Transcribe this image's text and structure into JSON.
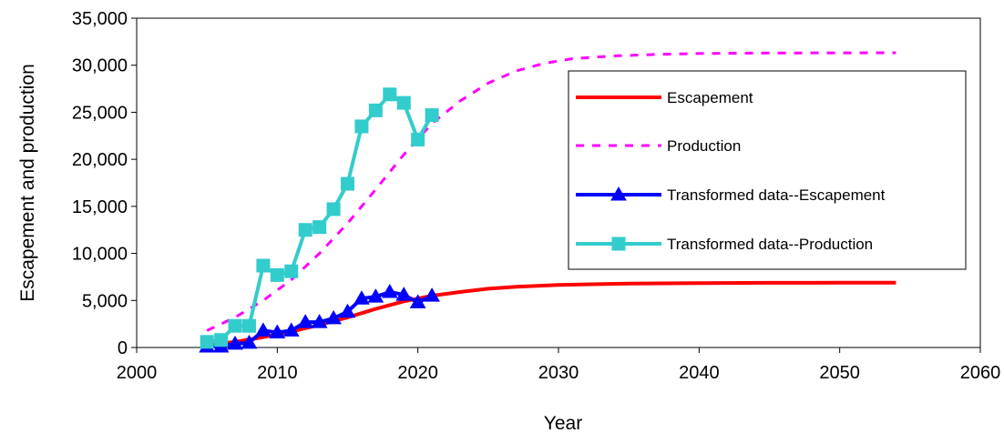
{
  "chart_data": {
    "type": "line",
    "title": "",
    "xlabel": "Year",
    "ylabel": "Escapement and production",
    "xlim": [
      2000,
      2060
    ],
    "ylim": [
      0,
      35000
    ],
    "x_ticks": [
      2000,
      2010,
      2020,
      2030,
      2040,
      2050,
      2060
    ],
    "y_ticks": [
      0,
      5000,
      10000,
      15000,
      20000,
      25000,
      30000,
      35000
    ],
    "x_tick_labels": [
      "2000",
      "2010",
      "2020",
      "2030",
      "2040",
      "2050",
      "2060"
    ],
    "y_tick_labels": [
      "0",
      "5,000",
      "10,000",
      "15,000",
      "20,000",
      "25,000",
      "30,000",
      "35,000"
    ],
    "grid": false,
    "legend_position": "right",
    "series": [
      {
        "name": "Escapement",
        "style": "solid",
        "color": "#ff0000",
        "marker": "none",
        "x": [
          2005,
          2007,
          2009,
          2011,
          2013,
          2015,
          2017,
          2019,
          2021,
          2023,
          2025,
          2027,
          2030,
          2035,
          2040,
          2045,
          2050,
          2054
        ],
        "y": [
          200,
          600,
          1100,
          1700,
          2400,
          3200,
          4100,
          4900,
          5500,
          5900,
          6250,
          6450,
          6650,
          6800,
          6850,
          6870,
          6880,
          6880
        ]
      },
      {
        "name": "Production",
        "style": "dashed",
        "color": "#ff00ff",
        "marker": "none",
        "x": [
          2005,
          2007,
          2009,
          2011,
          2013,
          2015,
          2017,
          2019,
          2021,
          2023,
          2025,
          2027,
          2029,
          2031,
          2034,
          2037,
          2040,
          2045,
          2050,
          2054
        ],
        "y": [
          1800,
          3200,
          5000,
          7200,
          10000,
          13200,
          16800,
          20500,
          23800,
          26200,
          28100,
          29400,
          30200,
          30700,
          31000,
          31150,
          31250,
          31300,
          31320,
          31330
        ]
      },
      {
        "name": "Transformed data--Escapement",
        "style": "solid",
        "color": "#0000ff",
        "marker": "triangle",
        "x": [
          2005,
          2006,
          2007,
          2008,
          2009,
          2010,
          2011,
          2012,
          2013,
          2014,
          2015,
          2016,
          2017,
          2018,
          2019,
          2020,
          2021
        ],
        "y": [
          100,
          100,
          400,
          500,
          1800,
          1600,
          1800,
          2700,
          2700,
          3100,
          3800,
          5200,
          5400,
          5900,
          5600,
          4800,
          5500
        ]
      },
      {
        "name": "Transformed data--Production",
        "style": "solid",
        "color": "#33cccc",
        "marker": "square",
        "x": [
          2005,
          2006,
          2007,
          2008,
          2009,
          2010,
          2011,
          2012,
          2013,
          2014,
          2015,
          2016,
          2017,
          2018,
          2019,
          2020,
          2021
        ],
        "y": [
          600,
          800,
          2300,
          2300,
          8700,
          7700,
          8100,
          12500,
          12800,
          14700,
          17400,
          23500,
          25200,
          26900,
          26000,
          22100,
          24700
        ]
      }
    ]
  }
}
